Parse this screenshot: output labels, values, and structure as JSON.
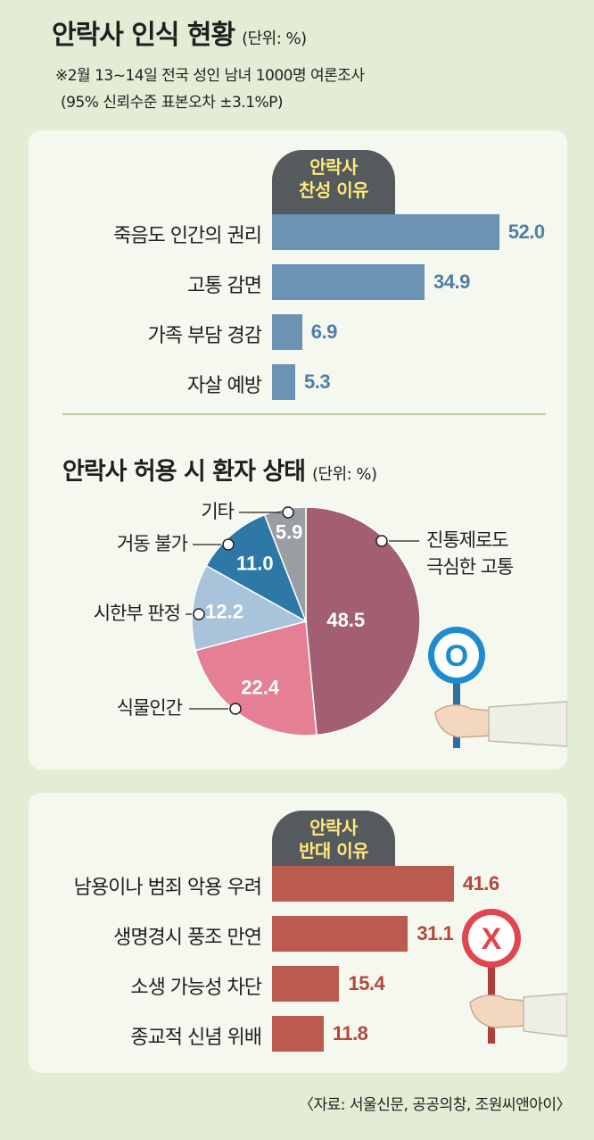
{
  "header": {
    "title": "안락사 인식 현황",
    "unit": "(단위: %)",
    "note1": "※2월 13~14일 전국 성인 남녀 1000명 여론조사",
    "note2": "(95% 신뢰수준 표본오차 ±3.1%P)"
  },
  "colors": {
    "pro_bar": "#6c93b3",
    "pro_value": "#4f7ea6",
    "con_bar": "#bb5b4d",
    "con_value": "#b3473b",
    "badge_bg": "#555a5e",
    "badge_text": "#ffe87a",
    "background": "#e3ecd4",
    "panel": "#f5f8ee"
  },
  "chart_data": [
    {
      "type": "bar",
      "badge": [
        "안락사",
        "찬성 이유"
      ],
      "categories": [
        "죽음도 인간의 권리",
        "고통 감면",
        "가족 부담 경감",
        "자살 예방"
      ],
      "values": [
        52.0,
        34.9,
        6.9,
        5.3
      ],
      "value_labels": [
        "52.0",
        "34.9",
        "6.9",
        "5.3"
      ]
    },
    {
      "type": "pie",
      "title": "안락사 허용 시 환자 상태",
      "unit": "(단위: %)",
      "slices": [
        {
          "label": "진통제로도 극심한 고통",
          "label_lines": [
            "진통제로도",
            "극심한 고통"
          ],
          "value": 48.5,
          "value_label": "48.5",
          "color": "#a35f72"
        },
        {
          "label": "식물인간",
          "label_lines": [
            "식물인간"
          ],
          "value": 22.4,
          "value_label": "22.4",
          "color": "#e57f93"
        },
        {
          "label": "시한부 판정",
          "label_lines": [
            "시한부 판정"
          ],
          "value": 12.2,
          "value_label": "12.2",
          "color": "#a9c3da"
        },
        {
          "label": "거동 불가",
          "label_lines": [
            "거동 불가"
          ],
          "value": 11.0,
          "value_label": "11.0",
          "color": "#2e78a8"
        },
        {
          "label": "기타",
          "label_lines": [
            "기타"
          ],
          "value": 5.9,
          "value_label": "5.9",
          "color": "#9a9ea3"
        }
      ]
    },
    {
      "type": "bar",
      "badge": [
        "안락사",
        "반대 이유"
      ],
      "categories": [
        "남용이나 범죄 악용 우려",
        "생명경시 풍조 만연",
        "소생 가능성 차단",
        "종교적 신념 위배"
      ],
      "values": [
        41.6,
        31.1,
        15.4,
        11.8
      ],
      "value_labels": [
        "41.6",
        "31.1",
        "15.4",
        "11.8"
      ]
    }
  ],
  "signs": {
    "pro": "O",
    "con": "X"
  },
  "source": "〈자료: 서울신문, 공공의창, 조원씨앤아이〉"
}
